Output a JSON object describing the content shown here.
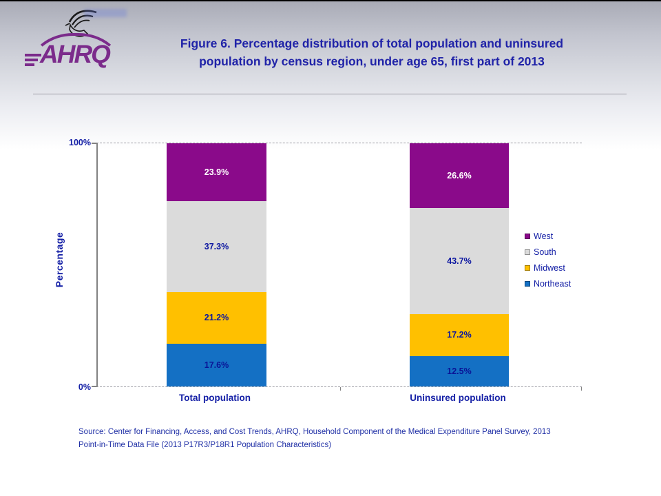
{
  "header": {
    "logo_text": "AHRQ",
    "title_line1": "Figure 6. Percentage distribution of total population and uninsured",
    "title_line2": "population by census region, under age 65, first part of 2013"
  },
  "colors": {
    "title_blue": "#2023a8",
    "navy_label": "#0b16a0",
    "logo_purple": "#7b2b8b",
    "axis_gray": "#828282"
  },
  "chart_data": {
    "type": "bar",
    "stacked": true,
    "categories": [
      "Total population",
      "Uninsured population"
    ],
    "series": [
      {
        "name": "West",
        "color": "#8a0a8a",
        "label_color": "#ffffff",
        "values": [
          23.9,
          26.6
        ]
      },
      {
        "name": "South",
        "color": "#dbdbdb",
        "label_color": "#0b16a0",
        "values": [
          37.3,
          43.7
        ]
      },
      {
        "name": "Midwest",
        "color": "#ffc000",
        "label_color": "#0b16a0",
        "values": [
          21.2,
          17.2
        ]
      },
      {
        "name": "Northeast",
        "color": "#1470c4",
        "label_color": "#0a1396",
        "values": [
          17.6,
          12.5
        ]
      }
    ],
    "title": "Figure 6. Percentage distribution of total population and uninsured population by census region, under age 65, first part of 2013",
    "xlabel": "",
    "ylabel": "Percentage",
    "ylim": [
      0,
      100
    ],
    "ytick_labels": {
      "max": "100%",
      "min": "0%"
    },
    "value_suffix": "%",
    "grid": "top-gridline-only",
    "legend_position": "right"
  },
  "footer": {
    "source_line1": "Source: Center for Financing, Access, and Cost Trends, AHRQ, Household Component of the Medical Expenditure Panel Survey, 2013",
    "source_line2": "Point-in-Time Data File (2013 P17R3/P18R1 Population Characteristics)"
  }
}
